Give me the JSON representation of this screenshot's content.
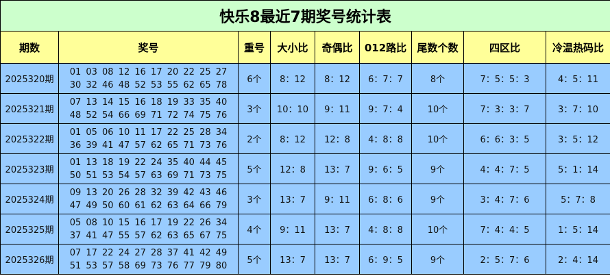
{
  "title": "快乐8最近7期奖号统计表",
  "headers": [
    "期数",
    "奖号",
    "重号",
    "大小比",
    "奇偶比",
    "012路比",
    "尾数个数",
    "四区比",
    "冷温热码比"
  ],
  "rows": [
    {
      "period": "2025320期",
      "line1": "01 03 08 12 16 17 20 22 25 27",
      "line2": "30 32 46 48 52 53 55 62 65 78",
      "repeat": "6个",
      "big_small": "8：12",
      "odd_even": "8：12",
      "route012": "6：7：7",
      "tail_count": "8个",
      "four_zone": "7：5：5：3",
      "cold_warm_hot": "4：5：11"
    },
    {
      "period": "2025321期",
      "line1": "07 13 14 15 16 18 19 33 35 40",
      "line2": "48 52 54 66 69 71 72 74 75 76",
      "repeat": "3个",
      "big_small": "10：10",
      "odd_even": "9：11",
      "route012": "9：7：4",
      "tail_count": "10个",
      "four_zone": "7：3：3：7",
      "cold_warm_hot": "3：7：10"
    },
    {
      "period": "2025322期",
      "line1": "01 05 06 10 11 17 22 25 28 34",
      "line2": "36 39 41 47 57 62 65 71 73 76",
      "repeat": "2个",
      "big_small": "8：12",
      "odd_even": "12：8",
      "route012": "4：8：8",
      "tail_count": "10个",
      "four_zone": "6：6：3：5",
      "cold_warm_hot": "3：5：12"
    },
    {
      "period": "2025323期",
      "line1": "01 13 18 19 22 24 35 40 44 45",
      "line2": "50 51 53 54 57 63 69 71 73 75",
      "repeat": "5个",
      "big_small": "12：8",
      "odd_even": "13：7",
      "route012": "9：6：5",
      "tail_count": "9个",
      "four_zone": "4：4：7：5",
      "cold_warm_hot": "5：1：14"
    },
    {
      "period": "2025324期",
      "line1": "09 13 20 26 28 32 39 42 43 46",
      "line2": "47 49 50 60 61 62 63 64 66 79",
      "repeat": "3个",
      "big_small": "13：7",
      "odd_even": "9：11",
      "route012": "6：8：6",
      "tail_count": "9个",
      "four_zone": "3：4：7：6",
      "cold_warm_hot": "5：7：8"
    },
    {
      "period": "2025325期",
      "line1": "05 08 10 15 16 17 19 22 26 34",
      "line2": "37 41 47 55 57 62 63 65 67 75",
      "repeat": "4个",
      "big_small": "9：11",
      "odd_even": "13：7",
      "route012": "4：8：8",
      "tail_count": "10个",
      "four_zone": "7：4：4：5",
      "cold_warm_hot": "1：5：14"
    },
    {
      "period": "2025326期",
      "line1": "07 17 22 24 27 28 37 41 42 49",
      "line2": "51 53 57 58 69 73 76 77 79 80",
      "repeat": "5个",
      "big_small": "13：7",
      "odd_even": "13：7",
      "route012": "6：9：5",
      "tail_count": "9个",
      "four_zone": "2：5：7：6",
      "cold_warm_hot": "2：4：14"
    }
  ]
}
